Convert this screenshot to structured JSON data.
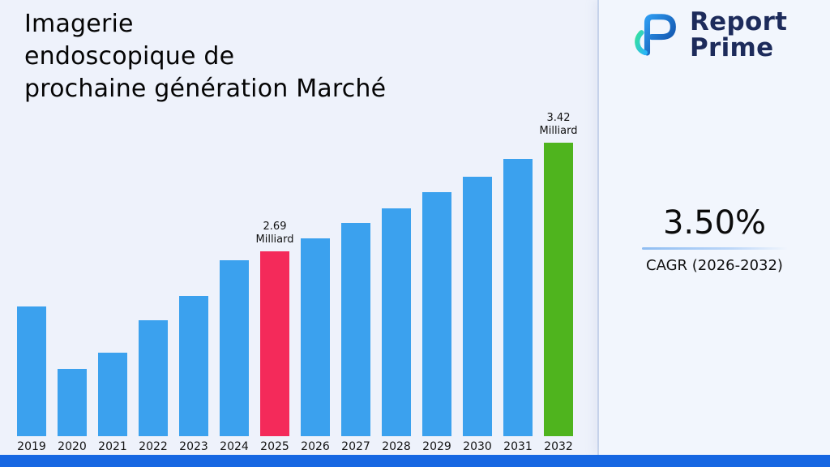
{
  "title": {
    "text": "Imagerie\nendoscopique de\nprochaine génération Marché"
  },
  "brand": {
    "line1": "Report",
    "line2": "Prime",
    "text_color": "#1D2B5B"
  },
  "stats": {
    "cagr_value": "3.50%",
    "cagr_label": "CAGR (2026-2032)"
  },
  "chart_data": {
    "type": "bar",
    "title": "Imagerie endoscopique de prochaine génération Marché",
    "categories": [
      "2019",
      "2020",
      "2021",
      "2022",
      "2023",
      "2024",
      "2025",
      "2026",
      "2027",
      "2028",
      "2029",
      "2030",
      "2031",
      "2032"
    ],
    "values": [
      2.32,
      1.9,
      2.01,
      2.23,
      2.39,
      2.63,
      2.69,
      2.78,
      2.88,
      2.98,
      3.09,
      3.19,
      3.31,
      3.42
    ],
    "unit": "Milliard",
    "value_labels": {
      "2025": "2.69\nMilliard",
      "2032": "3.42\nMilliard"
    },
    "bar_color": "#3BA1EE",
    "highlight_colors": {
      "2025": "#F42A5A",
      "2032": "#4FB41E"
    },
    "ylim": [
      1.45,
      3.42
    ],
    "xlabel": "",
    "ylabel": "",
    "grid": false,
    "legend": false
  },
  "colors": {
    "background": "#EEF2FB",
    "side_panel": "#F2F6FD",
    "footer": "#1667E2",
    "divider": "#CCD9EF"
  }
}
